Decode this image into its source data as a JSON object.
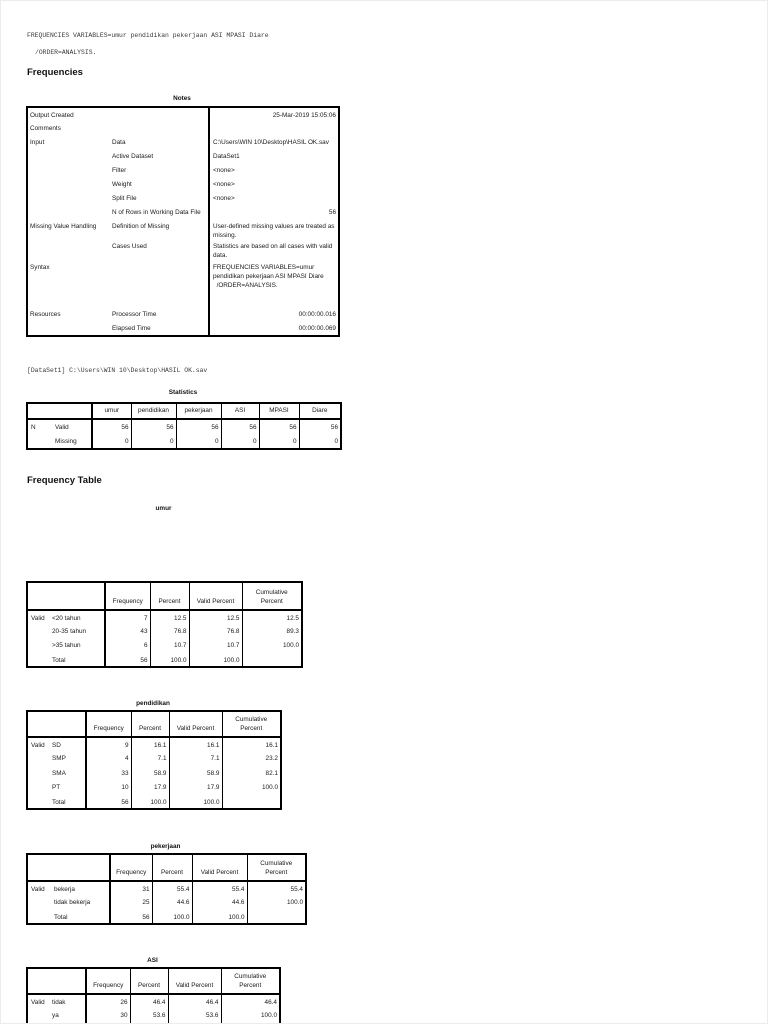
{
  "headings": {
    "frequencies": "Frequencies",
    "frequency_table": "Frequency Table"
  },
  "log": {
    "line1": "FREQUENCIES VARIABLES=umur pendidikan pekerjaan ASI MPASI Diare",
    "line2": "/ORDER=ANALYSIS.",
    "dataset_line": "[DataSet1] C:\\Users\\WIN 10\\Desktop\\HASIL OK.sav"
  },
  "notes_table": {
    "title": "Notes",
    "rows": [
      {
        "label": "Output Created",
        "sub": "",
        "value": "25-Mar-2019 15:05:06",
        "align": "right"
      },
      {
        "label": "Comments",
        "sub": "",
        "value": "",
        "align": "left"
      },
      {
        "label": "Input",
        "sub": "Data",
        "value": "C:\\Users\\WIN 10\\Desktop\\HASIL OK.sav",
        "align": "left"
      },
      {
        "label": "",
        "sub": "Active Dataset",
        "value": "DataSet1",
        "align": "left"
      },
      {
        "label": "",
        "sub": "Filter",
        "value": "<none>",
        "align": "left"
      },
      {
        "label": "",
        "sub": "Weight",
        "value": "<none>",
        "align": "left"
      },
      {
        "label": "",
        "sub": "Split File",
        "value": "<none>",
        "align": "left"
      },
      {
        "label": "",
        "sub": "N of Rows in Working Data File",
        "value": "56",
        "align": "right"
      },
      {
        "label": "Missing Value Handling",
        "sub": "Definition of Missing",
        "value": "User-defined missing values are treated as\nmissing.",
        "align": "left"
      },
      {
        "label": "",
        "sub": "Cases Used",
        "value": "Statistics are based on all cases with valid\ndata.",
        "align": "left"
      },
      {
        "label": "Syntax",
        "sub": "",
        "value": "FREQUENCIES VARIABLES=umur\npendidikan pekerjaan ASI MPASI Diare\n  /ORDER=ANALYSIS.",
        "align": "left"
      },
      {
        "label": "Resources",
        "sub": "Processor Time",
        "value": "00:00:00.016",
        "align": "right"
      },
      {
        "label": "",
        "sub": "Elapsed Time",
        "value": "00:00:00.069",
        "align": "right"
      }
    ]
  },
  "statistics_table": {
    "title": "Statistics",
    "columns": [
      "umur",
      "pendidikan",
      "pekerjaan",
      "ASI",
      "MPASI",
      "Diare"
    ],
    "rows": [
      {
        "stub1": "N",
        "stub2": "Valid",
        "values": [
          "56",
          "56",
          "56",
          "56",
          "56",
          "56"
        ]
      },
      {
        "stub1": "",
        "stub2": "Missing",
        "values": [
          "0",
          "0",
          "0",
          "0",
          "0",
          "0"
        ]
      }
    ]
  },
  "frequency_tables": [
    {
      "title": "umur",
      "columns": [
        "Frequency",
        "Percent",
        "Valid Percent",
        "Cumulative\nPercent"
      ],
      "rows": [
        {
          "stub1": "Valid",
          "stub2": "<20 tahun",
          "values": [
            "7",
            "12.5",
            "12.5",
            "12.5"
          ]
        },
        {
          "stub1": "",
          "stub2": "20-35 tahun",
          "values": [
            "43",
            "76.8",
            "76.8",
            "89.3"
          ]
        },
        {
          "stub1": "",
          "stub2": ">35 tahun",
          "values": [
            "6",
            "10.7",
            "10.7",
            "100.0"
          ]
        },
        {
          "stub1": "",
          "stub2": "Total",
          "values": [
            "56",
            "100.0",
            "100.0",
            ""
          ]
        }
      ]
    },
    {
      "title": "pendidikan",
      "columns": [
        "Frequency",
        "Percent",
        "Valid Percent",
        "Cumulative\nPercent"
      ],
      "rows": [
        {
          "stub1": "Valid",
          "stub2": "SD",
          "values": [
            "9",
            "16.1",
            "16.1",
            "16.1"
          ]
        },
        {
          "stub1": "",
          "stub2": "SMP",
          "values": [
            "4",
            "7.1",
            "7.1",
            "23.2"
          ]
        },
        {
          "stub1": "",
          "stub2": "SMA",
          "values": [
            "33",
            "58.9",
            "58.9",
            "82.1"
          ]
        },
        {
          "stub1": "",
          "stub2": "PT",
          "values": [
            "10",
            "17.9",
            "17.9",
            "100.0"
          ]
        },
        {
          "stub1": "",
          "stub2": "Total",
          "values": [
            "56",
            "100.0",
            "100.0",
            ""
          ]
        }
      ]
    },
    {
      "title": "pekerjaan",
      "columns": [
        "Frequency",
        "Percent",
        "Valid Percent",
        "Cumulative\nPercent"
      ],
      "rows": [
        {
          "stub1": "Valid",
          "stub2": "bekerja",
          "values": [
            "31",
            "55.4",
            "55.4",
            "55.4"
          ]
        },
        {
          "stub1": "",
          "stub2": "tidak bekerja",
          "values": [
            "25",
            "44.6",
            "44.6",
            "100.0"
          ]
        },
        {
          "stub1": "",
          "stub2": "Total",
          "values": [
            "56",
            "100.0",
            "100.0",
            ""
          ]
        }
      ]
    },
    {
      "title": "ASI",
      "columns": [
        "Frequency",
        "Percent",
        "Valid Percent",
        "Cumulative\nPercent"
      ],
      "rows": [
        {
          "stub1": "Valid",
          "stub2": "tidak",
          "values": [
            "26",
            "46.4",
            "46.4",
            "46.4"
          ]
        },
        {
          "stub1": "",
          "stub2": "ya",
          "values": [
            "30",
            "53.6",
            "53.6",
            "100.0"
          ]
        }
      ]
    }
  ]
}
